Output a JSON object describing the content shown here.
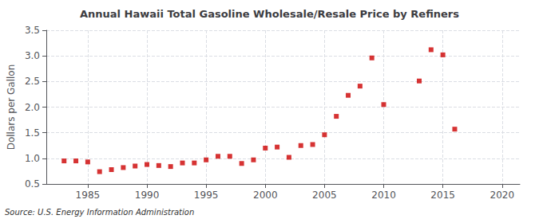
{
  "chart_data": {
    "type": "scatter",
    "title": "Annual Hawaii Total Gasoline Wholesale/Resale Price by Refiners",
    "ylabel": "Dollars per Gallon",
    "source": "Source: U.S. Energy Information Administration",
    "color": "#cc0000",
    "marker": "square",
    "grid": true,
    "xlim": [
      1981.5,
      2021.5
    ],
    "ylim": [
      0.5,
      3.5
    ],
    "xticks": [
      1985,
      1990,
      1995,
      2000,
      2005,
      2010,
      2015,
      2020
    ],
    "yticks": [
      0.5,
      {
        "value": 1,
        "label": "1.0"
      },
      1.5,
      {
        "value": 2,
        "label": "2.0"
      },
      2.5,
      {
        "value": 3,
        "label": "3.0"
      },
      3.5
    ],
    "x": [
      1983,
      1984,
      1985,
      1986,
      1987,
      1988,
      1989,
      1990,
      1991,
      1992,
      1993,
      1994,
      1995,
      1996,
      1997,
      1998,
      1999,
      2000,
      2001,
      2002,
      2003,
      2004,
      2005,
      2006,
      2007,
      2008,
      2009,
      2010,
      2013,
      2014,
      2015,
      2016
    ],
    "values": [
      0.95,
      0.95,
      0.93,
      0.74,
      0.78,
      0.82,
      0.85,
      0.88,
      0.86,
      0.84,
      0.91,
      0.91,
      0.97,
      1.04,
      1.04,
      0.9,
      0.97,
      1.2,
      1.22,
      1.02,
      1.25,
      1.27,
      1.46,
      1.82,
      2.23,
      2.41,
      2.96,
      2.05,
      2.51,
      3.12,
      3.02,
      1.57
    ]
  }
}
